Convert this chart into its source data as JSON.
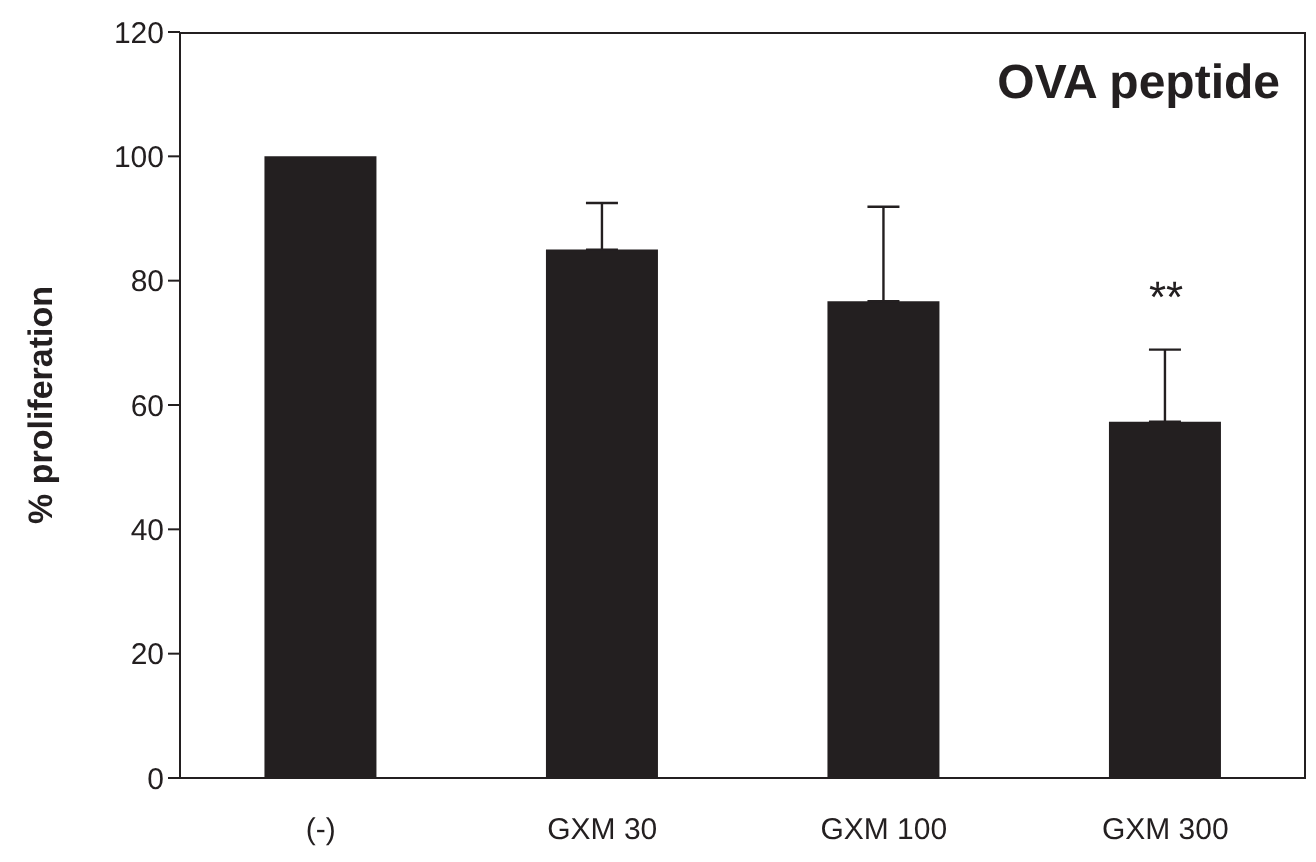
{
  "chart_data": {
    "type": "bar",
    "title": "OVA peptide",
    "ylabel": "% proliferation",
    "categories": [
      "(-)",
      "GXM 30",
      "GXM 100",
      "GXM 300"
    ],
    "values": [
      100,
      85,
      76.7,
      57.3
    ],
    "errors": [
      null,
      [
        85,
        92.5
      ],
      [
        76.7,
        91.9
      ],
      [
        57.3,
        68.9
      ]
    ],
    "color": "#231f20",
    "ylim": [
      0,
      120
    ],
    "yticks": [
      0,
      20,
      40,
      60,
      80,
      100,
      120
    ],
    "annotations": [
      "**"
    ]
  }
}
